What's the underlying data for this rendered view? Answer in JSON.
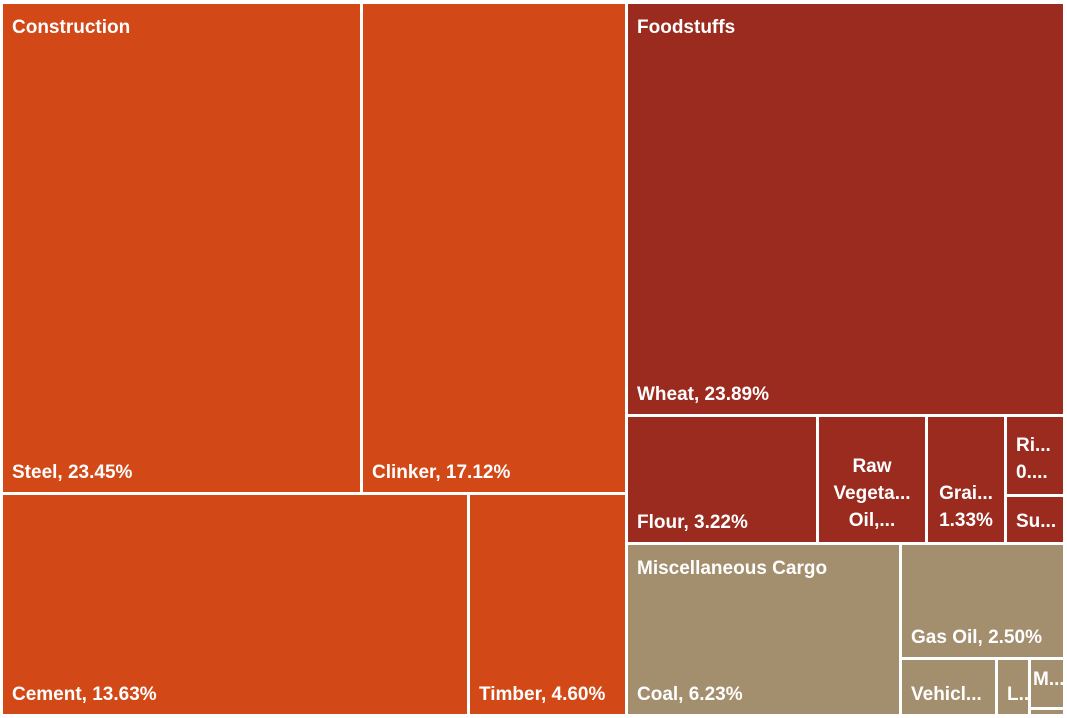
{
  "chart_data": {
    "type": "treemap",
    "title": "",
    "colors": {
      "Construction": "#D24816",
      "Foodstuffs": "#9B2A1F",
      "Miscellaneous Cargo": "#A38E6E",
      "border": "#ffffff"
    },
    "groups": [
      {
        "name": "Construction",
        "label": "Construction",
        "items": [
          {
            "name": "Steel",
            "value": 23.45,
            "label": "Steel, 23.45%"
          },
          {
            "name": "Clinker",
            "value": 17.12,
            "label": "Clinker, 17.12%"
          },
          {
            "name": "Cement",
            "value": 13.63,
            "label": "Cement, 13.63%"
          },
          {
            "name": "Timber",
            "value": 4.6,
            "label": "Timber, 4.60%"
          }
        ]
      },
      {
        "name": "Foodstuffs",
        "label": "Foodstuffs",
        "items": [
          {
            "name": "Wheat",
            "value": 23.89,
            "label": "Wheat, 23.89%"
          },
          {
            "name": "Flour",
            "value": 3.22,
            "label": "Flour, 3.22%"
          },
          {
            "name": "Raw Vegetable Oil",
            "value": 1.6,
            "label_lines": [
              "Raw",
              "Vegeta...",
              "Oil,..."
            ]
          },
          {
            "name": "Grain",
            "value": 1.33,
            "label_lines": [
              "Grai...",
              "1.33%"
            ]
          },
          {
            "name": "Rice",
            "value": 0.6,
            "label_lines": [
              "Ri...",
              "0...."
            ]
          },
          {
            "name": "Sugar",
            "value": 0.5,
            "label_lines": [
              "Su..."
            ]
          }
        ]
      },
      {
        "name": "Miscellaneous Cargo",
        "label": "Miscellaneous Cargo",
        "items": [
          {
            "name": "Coal",
            "value": 6.23,
            "label": "Coal, 6.23%"
          },
          {
            "name": "Gas Oil",
            "value": 2.5,
            "label": "Gas Oil, 2.50%"
          },
          {
            "name": "Vehicles",
            "value": 1.0,
            "label": "Vehicl..."
          },
          {
            "name": "L",
            "value": 0.3,
            "label": "L..."
          },
          {
            "name": "M",
            "value": 0.3,
            "label": "M..."
          },
          {
            "name": "Other",
            "value": 0.05,
            "label": ""
          }
        ]
      }
    ]
  }
}
